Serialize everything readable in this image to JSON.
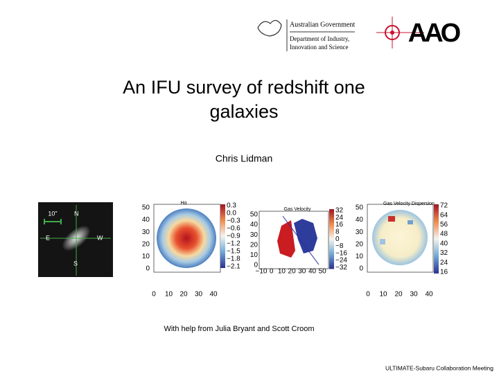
{
  "header": {
    "gov_logo": [
      "Australian Government",
      "Department of Industry,",
      "Innovation and Science"
    ],
    "aao_logo": "AAO"
  },
  "title": [
    "An IFU survey of redshift one",
    "galaxies"
  ],
  "author": "Chris Lidman",
  "panels": [
    {
      "labels": [
        "10\"",
        "N",
        "E",
        "W",
        "S"
      ]
    },
    {
      "title": "Hα",
      "yticks": [
        "50",
        "40",
        "30",
        "20",
        "10",
        "0"
      ],
      "xticks": [
        "0",
        "10",
        "20",
        "30",
        "40"
      ],
      "colorbar": [
        "0.3",
        "0.0",
        "−0.3",
        "−0.6",
        "−0.9",
        "−1.2",
        "−1.5",
        "−1.8",
        "−2.1"
      ]
    },
    {
      "title": "Gas Velocity",
      "yticks": [
        "50",
        "40",
        "30",
        "20",
        "10",
        "0"
      ],
      "xticks": [
        "−10",
        "0",
        "10",
        "20",
        "30",
        "40",
        "50"
      ],
      "colorbar": [
        "32",
        "24",
        "16",
        "8",
        "0",
        "−8",
        "−16",
        "−24",
        "−32"
      ]
    },
    {
      "title": "Gas Velocity Dispersion",
      "yticks": [
        "50",
        "40",
        "30",
        "20",
        "10",
        "0"
      ],
      "xticks": [
        "0",
        "10",
        "20",
        "30",
        "40"
      ],
      "colorbar": [
        "72",
        "64",
        "56",
        "48",
        "40",
        "32",
        "24",
        "16"
      ]
    }
  ],
  "credit": "With help from Julia Bryant and Scott Croom",
  "footer": "ULTIMATE-Subaru  Collaboration Meeting"
}
